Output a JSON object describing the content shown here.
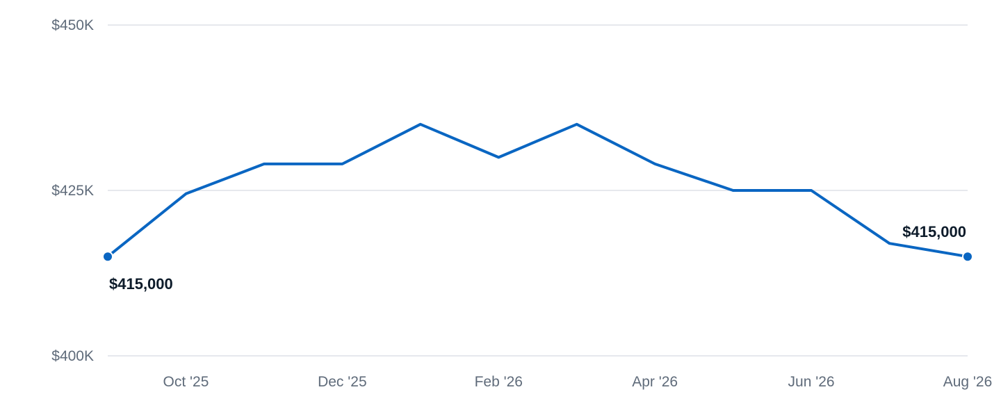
{
  "chart_data": {
    "type": "line",
    "title": "",
    "xlabel": "",
    "ylabel": "",
    "grid": true,
    "legend": "none",
    "line_color": "#0a66c2",
    "x": [
      "Sep '25",
      "Oct '25",
      "Nov '25",
      "Dec '25",
      "Jan '26",
      "Feb '26",
      "Mar '26",
      "Apr '26",
      "May '26",
      "Jun '26",
      "Jul '26",
      "Aug '26"
    ],
    "series": [
      {
        "values": [
          415000,
          424500,
          429000,
          429000,
          435000,
          430000,
          435000,
          429000,
          425000,
          425000,
          417000,
          415000
        ]
      }
    ],
    "ylim": [
      400000,
      450000
    ],
    "y_ticks": [
      {
        "value": 450000,
        "label": "$450K"
      },
      {
        "value": 425000,
        "label": "$425K"
      },
      {
        "value": 400000,
        "label": "$400K"
      }
    ],
    "x_ticks": [
      {
        "index": 1,
        "label": "Oct '25"
      },
      {
        "index": 3,
        "label": "Dec '25"
      },
      {
        "index": 5,
        "label": "Feb '26"
      },
      {
        "index": 7,
        "label": "Apr '26"
      },
      {
        "index": 9,
        "label": "Jun '26"
      },
      {
        "index": 11,
        "label": "Aug '26"
      }
    ],
    "annotations": [
      {
        "index": 0,
        "label": "$415,000"
      },
      {
        "index": 11,
        "label": "$415,000"
      }
    ]
  }
}
